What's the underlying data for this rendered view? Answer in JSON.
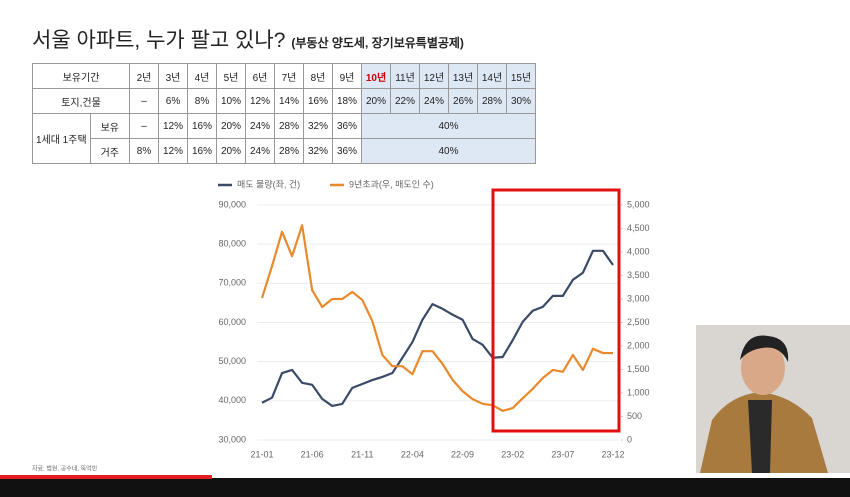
{
  "title": "서울 아파트, 누가 팔고 있나?",
  "subtitle": "(부동산 양도세, 장기보유특별공제)",
  "table": {
    "header": [
      "보유기간",
      "2년",
      "3년",
      "4년",
      "5년",
      "6년",
      "7년",
      "8년",
      "9년",
      "10년",
      "11년",
      "12년",
      "13년",
      "14년",
      "15년"
    ],
    "rows": [
      {
        "label": "토지,건물",
        "cells": [
          "–",
          "6%",
          "8%",
          "10%",
          "12%",
          "14%",
          "16%",
          "18%",
          "20%",
          "22%",
          "24%",
          "26%",
          "28%",
          "30%"
        ]
      },
      {
        "group": "1세대 1주택",
        "sub": [
          {
            "label": "보유",
            "cells": [
              "–",
              "12%",
              "16%",
              "20%",
              "24%",
              "28%",
              "32%",
              "36%",
              "40%"
            ]
          },
          {
            "label": "거주",
            "cells": [
              "8%",
              "12%",
              "16%",
              "20%",
              "24%",
              "28%",
              "32%",
              "36%",
              "40%"
            ]
          }
        ]
      }
    ]
  },
  "chart_data": {
    "type": "line",
    "categories": [
      "21-01",
      null,
      null,
      null,
      null,
      "21-06",
      null,
      null,
      null,
      null,
      "21-11",
      null,
      null,
      null,
      null,
      "22-04",
      null,
      null,
      null,
      null,
      "22-09",
      null,
      null,
      null,
      null,
      "23-02",
      null,
      null,
      null,
      null,
      "23-07",
      null,
      null,
      null,
      null,
      "23-12"
    ],
    "series": [
      {
        "name": "매도 물량(좌, 건)",
        "color": "#3b4a66",
        "axis": "y",
        "values": [
          39500,
          40800,
          47100,
          47900,
          44600,
          44100,
          40500,
          38700,
          39200,
          43300,
          44300,
          45300,
          46100,
          47100,
          51000,
          55000,
          60700,
          64700,
          63500,
          62000,
          60700,
          55800,
          54300,
          51000,
          51200,
          55500,
          60200,
          63000,
          64000,
          66800,
          66800,
          70900,
          72700,
          78300,
          78300,
          74700
        ]
      },
      {
        "name": "9년초과(우, 매도인 수)",
        "color": "#e8892c",
        "axis": "y2",
        "values": [
          3020,
          3700,
          4430,
          3910,
          4570,
          3190,
          2830,
          3000,
          3000,
          3150,
          2980,
          2530,
          1810,
          1570,
          1570,
          1400,
          1890,
          1890,
          1620,
          1280,
          1040,
          870,
          770,
          740,
          620,
          680,
          890,
          1090,
          1320,
          1490,
          1450,
          1810,
          1490,
          1940,
          1850,
          1850
        ]
      }
    ],
    "ylim": [
      30000,
      90000
    ],
    "yticks": [
      {
        "value": 30000,
        "label": "30,000"
      },
      {
        "value": 40000,
        "label": "40,000"
      },
      {
        "value": 50000,
        "label": "50,000"
      },
      {
        "value": 60000,
        "label": "60,000"
      },
      {
        "value": 70000,
        "label": "70,000"
      },
      {
        "value": 80000,
        "label": "80,000"
      },
      {
        "value": 90000,
        "label": "90,000"
      }
    ],
    "y2lim": [
      0,
      5000
    ],
    "y2ticks": [
      0,
      500,
      {
        "value": 1000,
        "label": "1,000"
      },
      {
        "value": 1500,
        "label": "1,500"
      },
      {
        "value": 2000,
        "label": "2,000"
      },
      {
        "value": 2500,
        "label": "2,500"
      },
      {
        "value": 3000,
        "label": "3,000"
      },
      {
        "value": 3500,
        "label": "3,500"
      },
      {
        "value": 4000,
        "label": "4,000"
      },
      {
        "value": 4500,
        "label": "4,500"
      },
      {
        "value": 5000,
        "label": "5,000"
      }
    ],
    "grid": true
  },
  "source": "자료: 법원, 공수네, 뚝억빈"
}
